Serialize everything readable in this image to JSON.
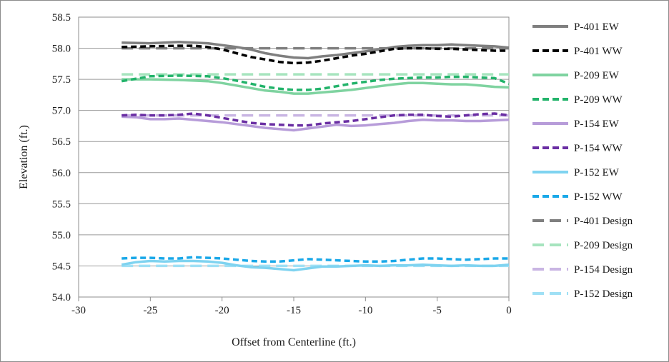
{
  "chart_data": {
    "type": "line",
    "xlabel": "Offset from Centerline (ft.)",
    "ylabel": "Elevation (ft.)",
    "xlim": [
      -30,
      0
    ],
    "ylim": [
      54.0,
      58.5
    ],
    "xticks": [
      -30,
      -25,
      -20,
      -15,
      -10,
      -5,
      0
    ],
    "xtick_labels": [
      "-30",
      "-25",
      "-20",
      "-15",
      "-10",
      "-5",
      "0"
    ],
    "yticks": [
      54.0,
      54.5,
      55.0,
      55.5,
      56.0,
      56.5,
      57.0,
      57.5,
      58.0,
      58.5
    ],
    "ytick_labels": [
      "54.0",
      "54.5",
      "55.0",
      "55.5",
      "56.0",
      "56.5",
      "57.0",
      "57.5",
      "58.0",
      "58.5"
    ],
    "grid": "horizontal",
    "legend_position": "right",
    "series": [
      {
        "name": "P-401 EW",
        "color": "#7f7f7f",
        "style": "solid",
        "x": [
          -27,
          -25,
          -23,
          -21,
          -19,
          -18,
          -17,
          -16,
          -15,
          -14,
          -13,
          -12,
          -11,
          -10,
          -9,
          -8,
          -7,
          -6,
          -5,
          -4,
          -3,
          -2,
          -1,
          0
        ],
        "y": [
          58.09,
          58.08,
          58.1,
          58.08,
          58.02,
          57.98,
          57.92,
          57.88,
          57.85,
          57.84,
          57.87,
          57.89,
          57.92,
          57.95,
          57.98,
          58.02,
          58.04,
          58.05,
          58.05,
          58.06,
          58.05,
          58.04,
          58.03,
          58.01
        ]
      },
      {
        "name": "P-401 WW",
        "color": "#000000",
        "style": "dash",
        "x": [
          -27,
          -25,
          -23,
          -22,
          -21,
          -20,
          -19,
          -18,
          -17,
          -16,
          -15,
          -14,
          -13,
          -12,
          -11,
          -10,
          -9,
          -8,
          -7,
          -6,
          -5,
          -4,
          -3,
          -2,
          -1,
          0
        ],
        "y": [
          58.02,
          58.03,
          58.04,
          58.04,
          58.02,
          57.98,
          57.92,
          57.86,
          57.82,
          57.78,
          57.76,
          57.77,
          57.8,
          57.84,
          57.88,
          57.91,
          57.95,
          57.99,
          58.0,
          58.0,
          57.99,
          57.99,
          57.98,
          57.97,
          57.96,
          57.96
        ]
      },
      {
        "name": "P-209 EW",
        "color": "#7fd3a0",
        "style": "solid",
        "x": [
          -27,
          -25,
          -23,
          -21,
          -20,
          -19,
          -18,
          -17,
          -16,
          -15,
          -14,
          -13,
          -12,
          -11,
          -10,
          -9,
          -8,
          -7,
          -6,
          -5,
          -4,
          -3,
          -2,
          -1,
          0
        ],
        "y": [
          57.5,
          57.5,
          57.49,
          57.47,
          57.44,
          57.4,
          57.36,
          57.32,
          57.3,
          57.27,
          57.27,
          57.29,
          57.31,
          57.33,
          57.36,
          57.39,
          57.42,
          57.44,
          57.44,
          57.43,
          57.42,
          57.42,
          57.4,
          57.38,
          57.37
        ]
      },
      {
        "name": "P-209 WW",
        "color": "#22b36a",
        "style": "dash",
        "x": [
          -27,
          -25,
          -23,
          -21,
          -20,
          -19,
          -18,
          -17,
          -16,
          -15,
          -14,
          -13,
          -12,
          -11,
          -10,
          -9,
          -8,
          -7,
          -6,
          -5,
          -4,
          -3,
          -2,
          -1,
          0
        ],
        "y": [
          57.47,
          57.55,
          57.56,
          57.55,
          57.52,
          57.48,
          57.43,
          57.38,
          57.35,
          57.33,
          57.33,
          57.35,
          57.39,
          57.43,
          57.46,
          57.49,
          57.51,
          57.52,
          57.53,
          57.53,
          57.54,
          57.54,
          57.53,
          57.52,
          57.43
        ]
      },
      {
        "name": "P-154 EW",
        "color": "#b79cd9",
        "style": "solid",
        "x": [
          -27,
          -26,
          -25,
          -24,
          -23,
          -22,
          -21,
          -20,
          -19,
          -18,
          -17,
          -16,
          -15,
          -14,
          -13,
          -12,
          -11,
          -10,
          -9,
          -8,
          -7,
          -6,
          -5,
          -4,
          -3,
          -2,
          -1,
          0
        ],
        "y": [
          56.9,
          56.89,
          56.86,
          56.86,
          56.87,
          56.85,
          56.83,
          56.81,
          56.78,
          56.75,
          56.72,
          56.7,
          56.68,
          56.71,
          56.74,
          56.77,
          56.75,
          56.76,
          56.78,
          56.8,
          56.83,
          56.85,
          56.84,
          56.84,
          56.83,
          56.83,
          56.84,
          56.85
        ]
      },
      {
        "name": "P-154 WW",
        "color": "#6a2ea3",
        "style": "dash",
        "x": [
          -27,
          -26,
          -25,
          -24,
          -23,
          -22,
          -21,
          -20,
          -19,
          -18,
          -17,
          -16,
          -15,
          -14,
          -13,
          -12,
          -11,
          -10,
          -9,
          -8,
          -7,
          -6,
          -5,
          -4,
          -3,
          -2,
          -1,
          0
        ],
        "y": [
          56.92,
          56.93,
          56.92,
          56.92,
          56.93,
          56.95,
          56.92,
          56.88,
          56.84,
          56.8,
          56.78,
          56.77,
          56.76,
          56.76,
          56.79,
          56.81,
          56.83,
          56.86,
          56.89,
          56.92,
          56.93,
          56.93,
          56.91,
          56.9,
          56.92,
          56.94,
          56.95,
          56.92
        ]
      },
      {
        "name": "P-152 EW",
        "color": "#7fd3f0",
        "style": "solid",
        "x": [
          -27,
          -26,
          -25,
          -24,
          -23,
          -22,
          -21,
          -20,
          -19,
          -18,
          -17,
          -16,
          -15,
          -14,
          -13,
          -12,
          -11,
          -10,
          -9,
          -8,
          -7,
          -6,
          -5,
          -4,
          -3,
          -2,
          -1,
          0
        ],
        "y": [
          54.52,
          54.56,
          54.58,
          54.57,
          54.58,
          54.58,
          54.57,
          54.55,
          54.51,
          54.48,
          54.47,
          54.45,
          54.43,
          54.46,
          54.49,
          54.49,
          54.5,
          54.51,
          54.5,
          54.51,
          54.51,
          54.52,
          54.51,
          54.5,
          54.51,
          54.5,
          54.5,
          54.52
        ]
      },
      {
        "name": "P-152 WW",
        "color": "#1aa8e8",
        "style": "dash",
        "x": [
          -27,
          -26,
          -25,
          -24,
          -23,
          -22,
          -21,
          -20,
          -19,
          -18,
          -17,
          -16,
          -15,
          -14,
          -13,
          -12,
          -11,
          -10,
          -9,
          -8,
          -7,
          -6,
          -5,
          -4,
          -3,
          -2,
          -1,
          0
        ],
        "y": [
          54.62,
          54.63,
          54.63,
          54.62,
          54.62,
          54.64,
          54.63,
          54.62,
          54.6,
          54.58,
          54.57,
          54.57,
          54.59,
          54.61,
          54.6,
          54.59,
          54.58,
          54.57,
          54.57,
          54.58,
          54.6,
          54.62,
          54.62,
          54.61,
          54.6,
          54.61,
          54.62,
          54.62
        ]
      },
      {
        "name": "P-401 Design",
        "color": "#7f7f7f",
        "style": "longdash",
        "x": [
          -27,
          0
        ],
        "y": [
          58.0,
          58.0
        ]
      },
      {
        "name": "P-209 Design",
        "color": "#a6e4be",
        "style": "longdash",
        "x": [
          -27,
          0
        ],
        "y": [
          57.58,
          57.58
        ]
      },
      {
        "name": "P-154 Design",
        "color": "#c9b5e3",
        "style": "longdash",
        "x": [
          -27,
          0
        ],
        "y": [
          56.92,
          56.92
        ]
      },
      {
        "name": "P-152 Design",
        "color": "#9fe0f5",
        "style": "longdash",
        "x": [
          -27,
          0
        ],
        "y": [
          54.5,
          54.5
        ]
      }
    ]
  }
}
